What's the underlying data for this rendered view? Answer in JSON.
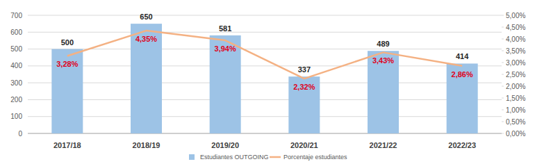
{
  "chart_data": {
    "type": "bar",
    "categories": [
      "2017/18",
      "2018/19",
      "2019/20",
      "2020/21",
      "2021/22",
      "2022/23"
    ],
    "series": [
      {
        "name": "Estudiantes OUTGOING",
        "type": "bar",
        "color": "#9dc3e6",
        "values": [
          500,
          650,
          581,
          337,
          489,
          414
        ],
        "data_labels": true
      },
      {
        "name": "Porcentaje estudiantes",
        "type": "line",
        "axis": "y2",
        "color": "#f4b183",
        "values": [
          3.28,
          4.35,
          3.94,
          2.32,
          3.43,
          2.86
        ],
        "value_labels": [
          "3,28%",
          "4,35%",
          "3,94%",
          "2,32%",
          "3,43%",
          "2,86%"
        ],
        "data_labels": true
      }
    ],
    "ylim": [
      0,
      700
    ],
    "yticks": [
      0,
      100,
      200,
      300,
      400,
      500,
      600,
      700
    ],
    "y2lim": [
      0,
      5
    ],
    "y2ticks": [
      {
        "value": 0,
        "label": "0,00%"
      },
      {
        "value": 0.5,
        "label": "0,50%"
      },
      {
        "value": 1,
        "label": "1,00%"
      },
      {
        "value": 1.5,
        "label": "1,50%"
      },
      {
        "value": 2,
        "label": "2,00%"
      },
      {
        "value": 2.5,
        "label": "2,50%"
      },
      {
        "value": 3,
        "label": "3,00%"
      },
      {
        "value": 3.5,
        "label": "3,50%"
      },
      {
        "value": 4,
        "label": "4,00%"
      },
      {
        "value": 4.5,
        "label": "4,50%"
      },
      {
        "value": 5,
        "label": "5,00%"
      }
    ],
    "grid": true,
    "legend": "bottom"
  }
}
